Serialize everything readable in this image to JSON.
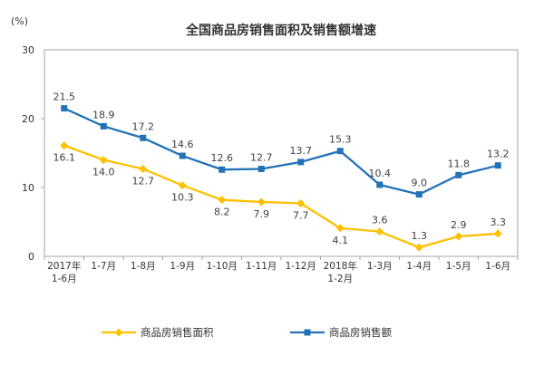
{
  "chart_data": {
    "type": "line",
    "title": "全国商品房销售面积及销售额增速",
    "y_unit": "(%)",
    "xlabel": "",
    "ylabel": "(%)",
    "ylim": [
      0,
      30
    ],
    "yticks": [
      0,
      10,
      20,
      30
    ],
    "grid": false,
    "legend_position": "bottom",
    "plot_border_color": "#A6A6A6",
    "label_color": "#404040",
    "axis_text_color": "#333333",
    "categories": [
      [
        "2017年",
        "1-6月"
      ],
      [
        "1-7月"
      ],
      [
        "1-8月"
      ],
      [
        "1-9月"
      ],
      [
        "1-10月"
      ],
      [
        "1-11月"
      ],
      [
        "1-12月"
      ],
      [
        "2018年",
        "1-2月"
      ],
      [
        "1-3月"
      ],
      [
        "1-4月"
      ],
      [
        "1-5月"
      ],
      [
        "1-6月"
      ]
    ],
    "series": [
      {
        "name": "商品房销售面积",
        "color": "#FFC000",
        "marker": "diamond",
        "values": [
          16.1,
          14.0,
          12.7,
          10.3,
          8.2,
          7.9,
          7.7,
          4.1,
          3.6,
          1.3,
          2.9,
          3.3
        ],
        "label_side": [
          "below",
          "below",
          "below",
          "below",
          "below",
          "below",
          "below",
          "below",
          "above",
          "above",
          "above",
          "above"
        ]
      },
      {
        "name": "商品房销售额",
        "color": "#2272B8",
        "marker": "square",
        "values": [
          21.5,
          18.9,
          17.2,
          14.6,
          12.6,
          12.7,
          13.7,
          15.3,
          10.4,
          9.0,
          11.8,
          13.2
        ],
        "label_side": [
          "above",
          "above",
          "above",
          "above",
          "above",
          "above",
          "above",
          "above",
          "above",
          "above",
          "above",
          "above"
        ]
      }
    ]
  }
}
